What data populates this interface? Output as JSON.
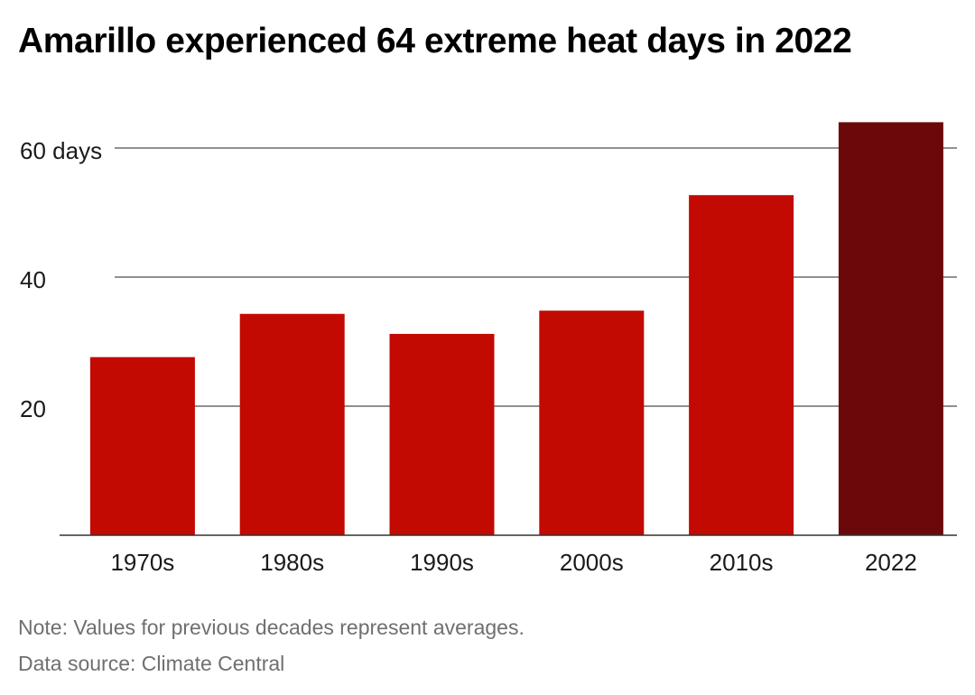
{
  "chart_data": {
    "type": "bar",
    "title": "Amarillo experienced 64 extreme heat days in 2022",
    "categories": [
      "1970s",
      "1980s",
      "1990s",
      "2000s",
      "2010s",
      "2022"
    ],
    "values": [
      27.6,
      34.3,
      31.2,
      34.8,
      52.7,
      64
    ],
    "ylim": [
      0,
      64
    ],
    "y_ticks": [
      {
        "value": 20,
        "label": "20"
      },
      {
        "value": 40,
        "label": "40"
      },
      {
        "value": 60,
        "label": "60 days"
      }
    ],
    "grid": true,
    "legend": "none",
    "colors": {
      "bar": "#c20a02",
      "highlight_bar": "#6b090a",
      "grid": "#4d4d4d",
      "baseline": "#333333"
    },
    "highlight_category": "2022"
  },
  "footer": {
    "note": "Note: Values for previous decades represent averages.",
    "source": "Data source: Climate Central"
  }
}
